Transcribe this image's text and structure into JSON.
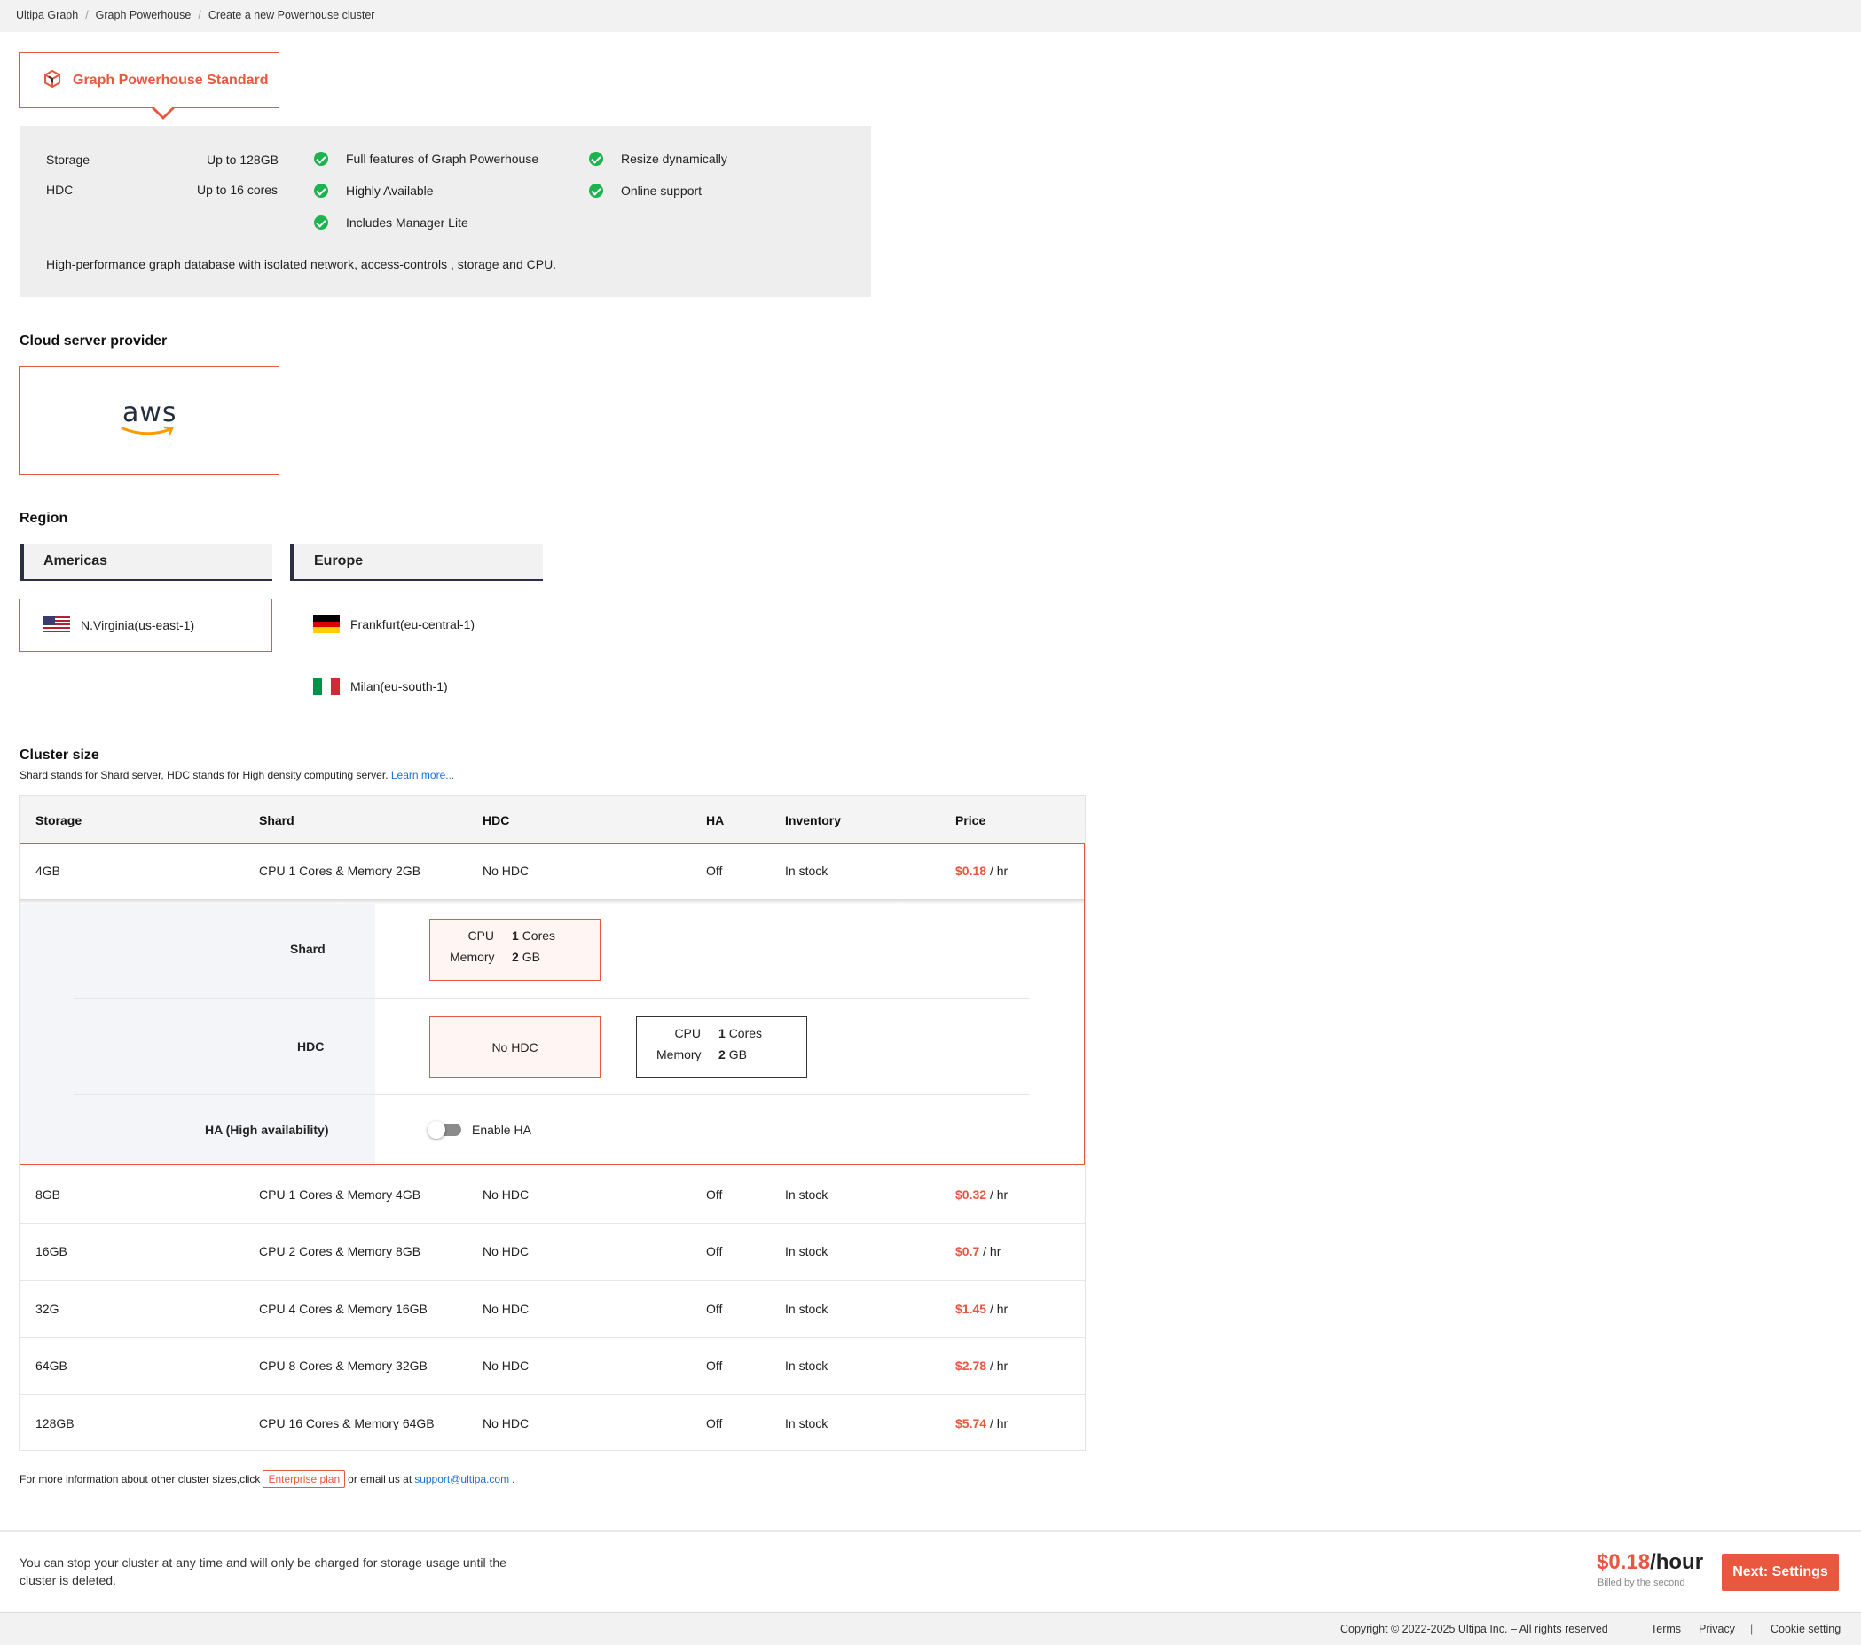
{
  "breadcrumb": [
    "Ultipa Graph",
    "Graph Powerhouse",
    "Create a new Powerhouse cluster"
  ],
  "breadcrumb_sep": "/",
  "product": {
    "name": "Graph Powerhouse Standard",
    "specs": [
      {
        "key": "Storage",
        "value": "Up to 128GB"
      },
      {
        "key": "HDC",
        "value": "Up to 16 cores"
      }
    ],
    "features_col1": [
      "Full features of Graph Powerhouse",
      "Highly Available",
      "Includes Manager Lite"
    ],
    "features_col2": [
      "Resize dynamically",
      "Online support"
    ],
    "description": "High-performance graph database with isolated network, access-controls , storage and CPU."
  },
  "cloud": {
    "title": "Cloud server provider",
    "provider_logo_text": "aws"
  },
  "region": {
    "title": "Region",
    "groups": [
      {
        "name": "Americas",
        "options": [
          {
            "label": "N.Virginia(us-east-1)",
            "flag": "us-flag",
            "selected": true
          }
        ]
      },
      {
        "name": "Europe",
        "options": [
          {
            "label": "Frankfurt(eu-central-1)",
            "flag": "de-flag",
            "selected": false
          },
          {
            "label": "Milan(eu-south-1)",
            "flag": "it-flag",
            "selected": false
          }
        ]
      }
    ]
  },
  "cluster": {
    "title": "Cluster size",
    "subtitle": "Shard stands for Shard server, HDC stands for High density computing server.",
    "learn_more": "Learn more...",
    "columns": [
      "Storage",
      "Shard",
      "HDC",
      "HA",
      "Inventory",
      "Price"
    ],
    "price_unit": "/ hr",
    "rows": [
      {
        "storage": "4GB",
        "shard": "CPU 1 Cores & Memory 2GB",
        "hdc": "No HDC",
        "ha": "Off",
        "inventory": "In stock",
        "price": "$0.18"
      },
      {
        "storage": "8GB",
        "shard": "CPU 1 Cores & Memory 4GB",
        "hdc": "No HDC",
        "ha": "Off",
        "inventory": "In stock",
        "price": "$0.32"
      },
      {
        "storage": "16GB",
        "shard": "CPU 2 Cores & Memory 8GB",
        "hdc": "No HDC",
        "ha": "Off",
        "inventory": "In stock",
        "price": "$0.7"
      },
      {
        "storage": "32G",
        "shard": "CPU 4 Cores & Memory 16GB",
        "hdc": "No HDC",
        "ha": "Off",
        "inventory": "In stock",
        "price": "$1.45"
      },
      {
        "storage": "64GB",
        "shard": "CPU 8 Cores & Memory 32GB",
        "hdc": "No HDC",
        "ha": "Off",
        "inventory": "In stock",
        "price": "$2.78"
      },
      {
        "storage": "128GB",
        "shard": "CPU 16 Cores & Memory 64GB",
        "hdc": "No HDC",
        "ha": "Off",
        "inventory": "In stock",
        "price": "$5.74"
      }
    ],
    "detail": {
      "shard_label": "Shard",
      "hdc_label": "HDC",
      "ha_label": "HA (High availability)",
      "cpu_label": "CPU",
      "memory_label": "Memory",
      "shard_cpu": "1",
      "shard_cpu_unit": "Cores",
      "shard_mem": "2",
      "shard_mem_unit": "GB",
      "no_hdc": "No HDC",
      "hdc_cpu": "1",
      "hdc_cpu_unit": "Cores",
      "hdc_mem": "2",
      "hdc_mem_unit": "GB",
      "enable_ha": "Enable HA"
    },
    "more_info_prefix": "For more information about other cluster sizes,click",
    "enterprise_plan": "Enterprise plan",
    "more_info_mid": "or email us at",
    "support_email": "support@ultipa.com",
    "more_info_end": "."
  },
  "bottom": {
    "note": "You can stop your cluster at any time and will only be charged for storage usage until the cluster is deleted.",
    "price": "$0.18",
    "price_unit": "/hour",
    "billed": "Billed by the second",
    "next_button": "Next: Settings"
  },
  "footer": {
    "copyright": "Copyright © 2022-2025 Ultipa Inc. – All rights reserved",
    "terms": "Terms",
    "privacy": "Privacy",
    "divider": "|",
    "cookie": "Cookie setting"
  },
  "colors": {
    "accent": "#e8573e",
    "check": "#1db34f",
    "link": "#1f6fd1",
    "dark": "#2b2d42"
  }
}
